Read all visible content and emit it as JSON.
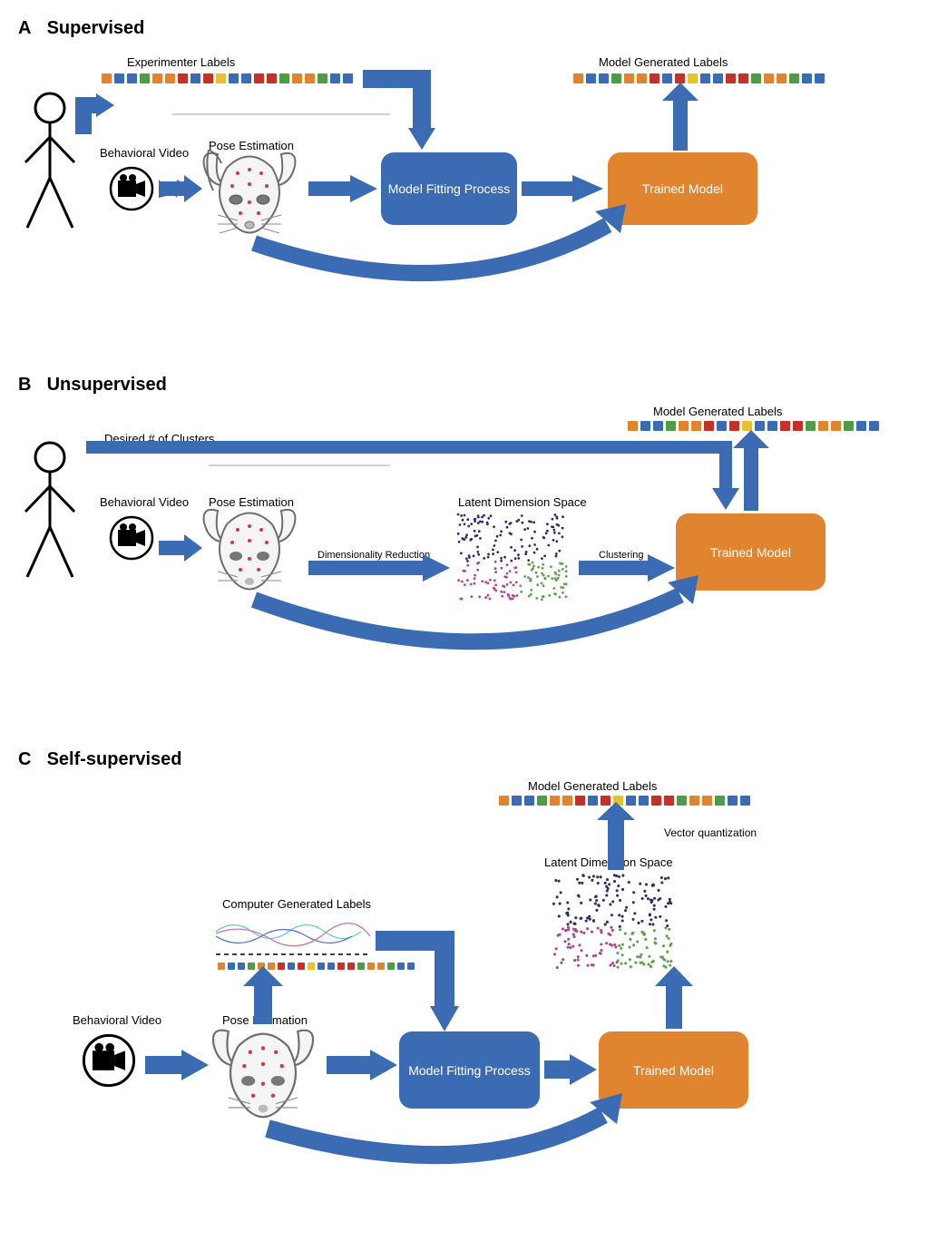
{
  "colors": {
    "arrow_blue": "#3b6cb3",
    "box_blue": "#3b6cb3",
    "box_orange": "#e0842f",
    "outline": "#000000",
    "scatter_navy": "#2c2f6e",
    "scatter_green": "#5fa04c",
    "scatter_magenta": "#b0448e",
    "mouse_body": "#f5f5f5",
    "mouse_outline": "#6e6e6e",
    "mouse_dot": "#d33a3a"
  },
  "square_palette": {
    "orange": "#e0842f",
    "blue": "#3b6cb3",
    "green": "#4f9b47",
    "red": "#c3312b",
    "yellow": "#e8c22e"
  },
  "label_sequence": [
    "orange",
    "blue",
    "blue",
    "green",
    "orange",
    "orange",
    "red",
    "blue",
    "red",
    "yellow",
    "blue",
    "blue",
    "red",
    "red",
    "green",
    "orange",
    "orange",
    "green",
    "blue",
    "blue"
  ],
  "panels": {
    "A": {
      "letter": "A",
      "title": "Supervised",
      "labels": {
        "experimenter": "Experimenter Labels",
        "behavioral_video": "Behavioral Video",
        "pose_estimation": "Pose Estimation",
        "model_fitting": "Model Fitting Process",
        "trained_model": "Trained Model",
        "model_generated": "Model Generated Labels"
      }
    },
    "B": {
      "letter": "B",
      "title": "Unsupervised",
      "labels": {
        "desired_clusters": "Desired # of Clusters",
        "behavioral_video": "Behavioral Video",
        "pose_estimation": "Pose Estimation",
        "dim_reduction": "Dimensionality Reduction",
        "latent_space": "Latent Dimension Space",
        "clustering": "Clustering",
        "trained_model": "Trained Model",
        "model_generated": "Model Generated Labels"
      }
    },
    "C": {
      "letter": "C",
      "title": "Self-supervised",
      "labels": {
        "computer_generated": "Computer Generated Labels",
        "behavioral_video": "Behavioral Video",
        "pose_estimation": "Pose Estimation",
        "model_fitting": "Model Fitting Process",
        "trained_model": "Trained Model",
        "latent_space": "Latent Dimension Space",
        "vector_quant": "Vector quantization",
        "model_generated": "Model Generated Labels"
      }
    }
  },
  "styles": {
    "panel_title_fontsize": 20,
    "label_fontsize": 13,
    "box_fontsize": 14,
    "box_border_radius": 14,
    "arrow_width": 22,
    "square_size": 11
  }
}
